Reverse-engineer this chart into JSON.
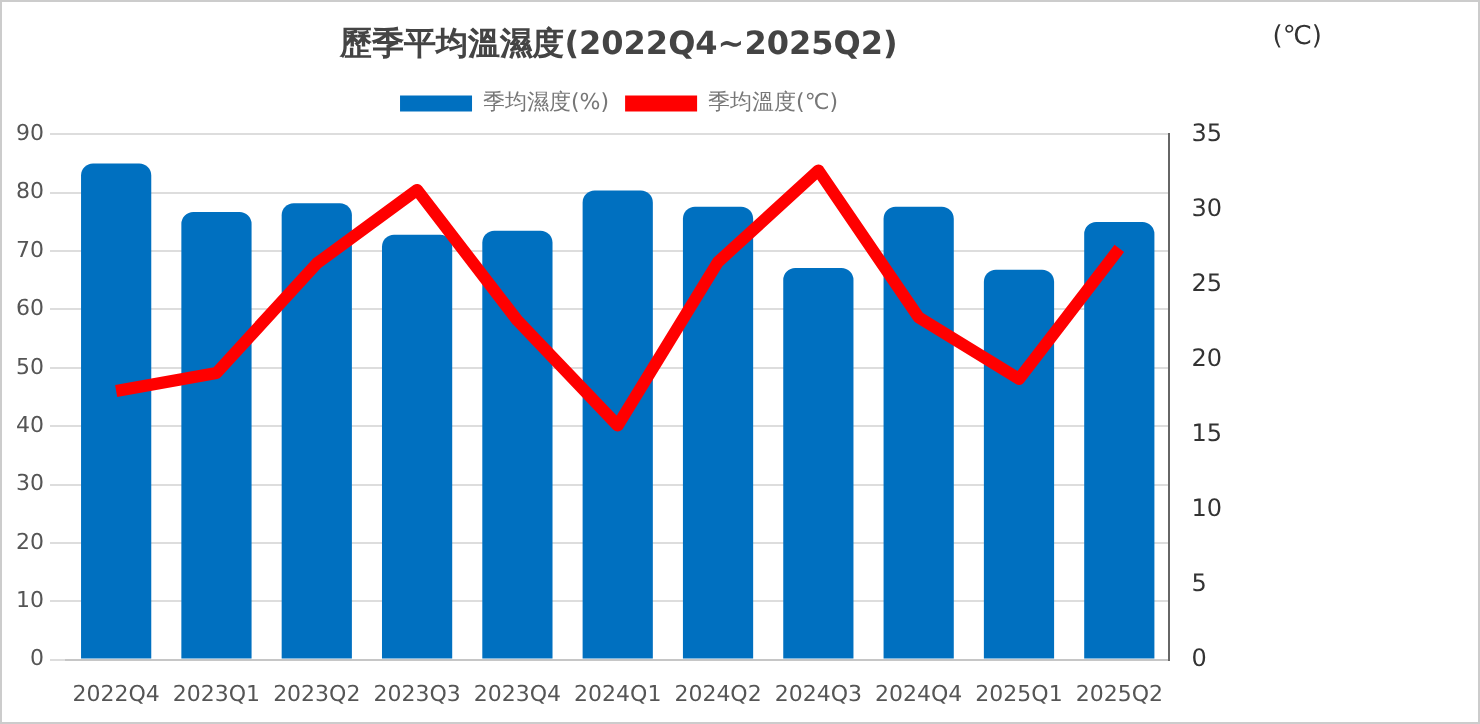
{
  "chart_data": {
    "type": "bar",
    "title": "歷季平均溫濕度(2022Q4~2025Q2)",
    "y2label": "(℃)",
    "categories": [
      "2022Q4",
      "2023Q1",
      "2023Q2",
      "2023Q3",
      "2023Q4",
      "2024Q1",
      "2024Q2",
      "2024Q3",
      "2024Q4",
      "2025Q1",
      "2025Q2"
    ],
    "series": [
      {
        "name": "季均濕度(%)",
        "color": "#0070c0",
        "values": [
          85,
          76.7,
          78.2,
          72.8,
          73.5,
          80.4,
          77.6,
          67.1,
          77.6,
          66.8,
          75
        ]
      },
      {
        "name": "季均溫度(℃)",
        "type": "line",
        "axis": "y2",
        "color": "#ff0000",
        "values": [
          17.9,
          19.1,
          26.4,
          31.3,
          22.6,
          15.6,
          26.5,
          32.6,
          22.8,
          18.7,
          27.4
        ]
      }
    ],
    "ylim": [
      0,
      90
    ],
    "yticks": [
      0,
      10,
      20,
      30,
      40,
      50,
      60,
      70,
      80,
      90
    ],
    "y2lim": [
      0,
      35
    ],
    "y2ticks": [
      0,
      5,
      10,
      15,
      20,
      25,
      30,
      35
    ],
    "grid": "y",
    "legend": "top",
    "marker": "none",
    "line_style": "solid"
  }
}
